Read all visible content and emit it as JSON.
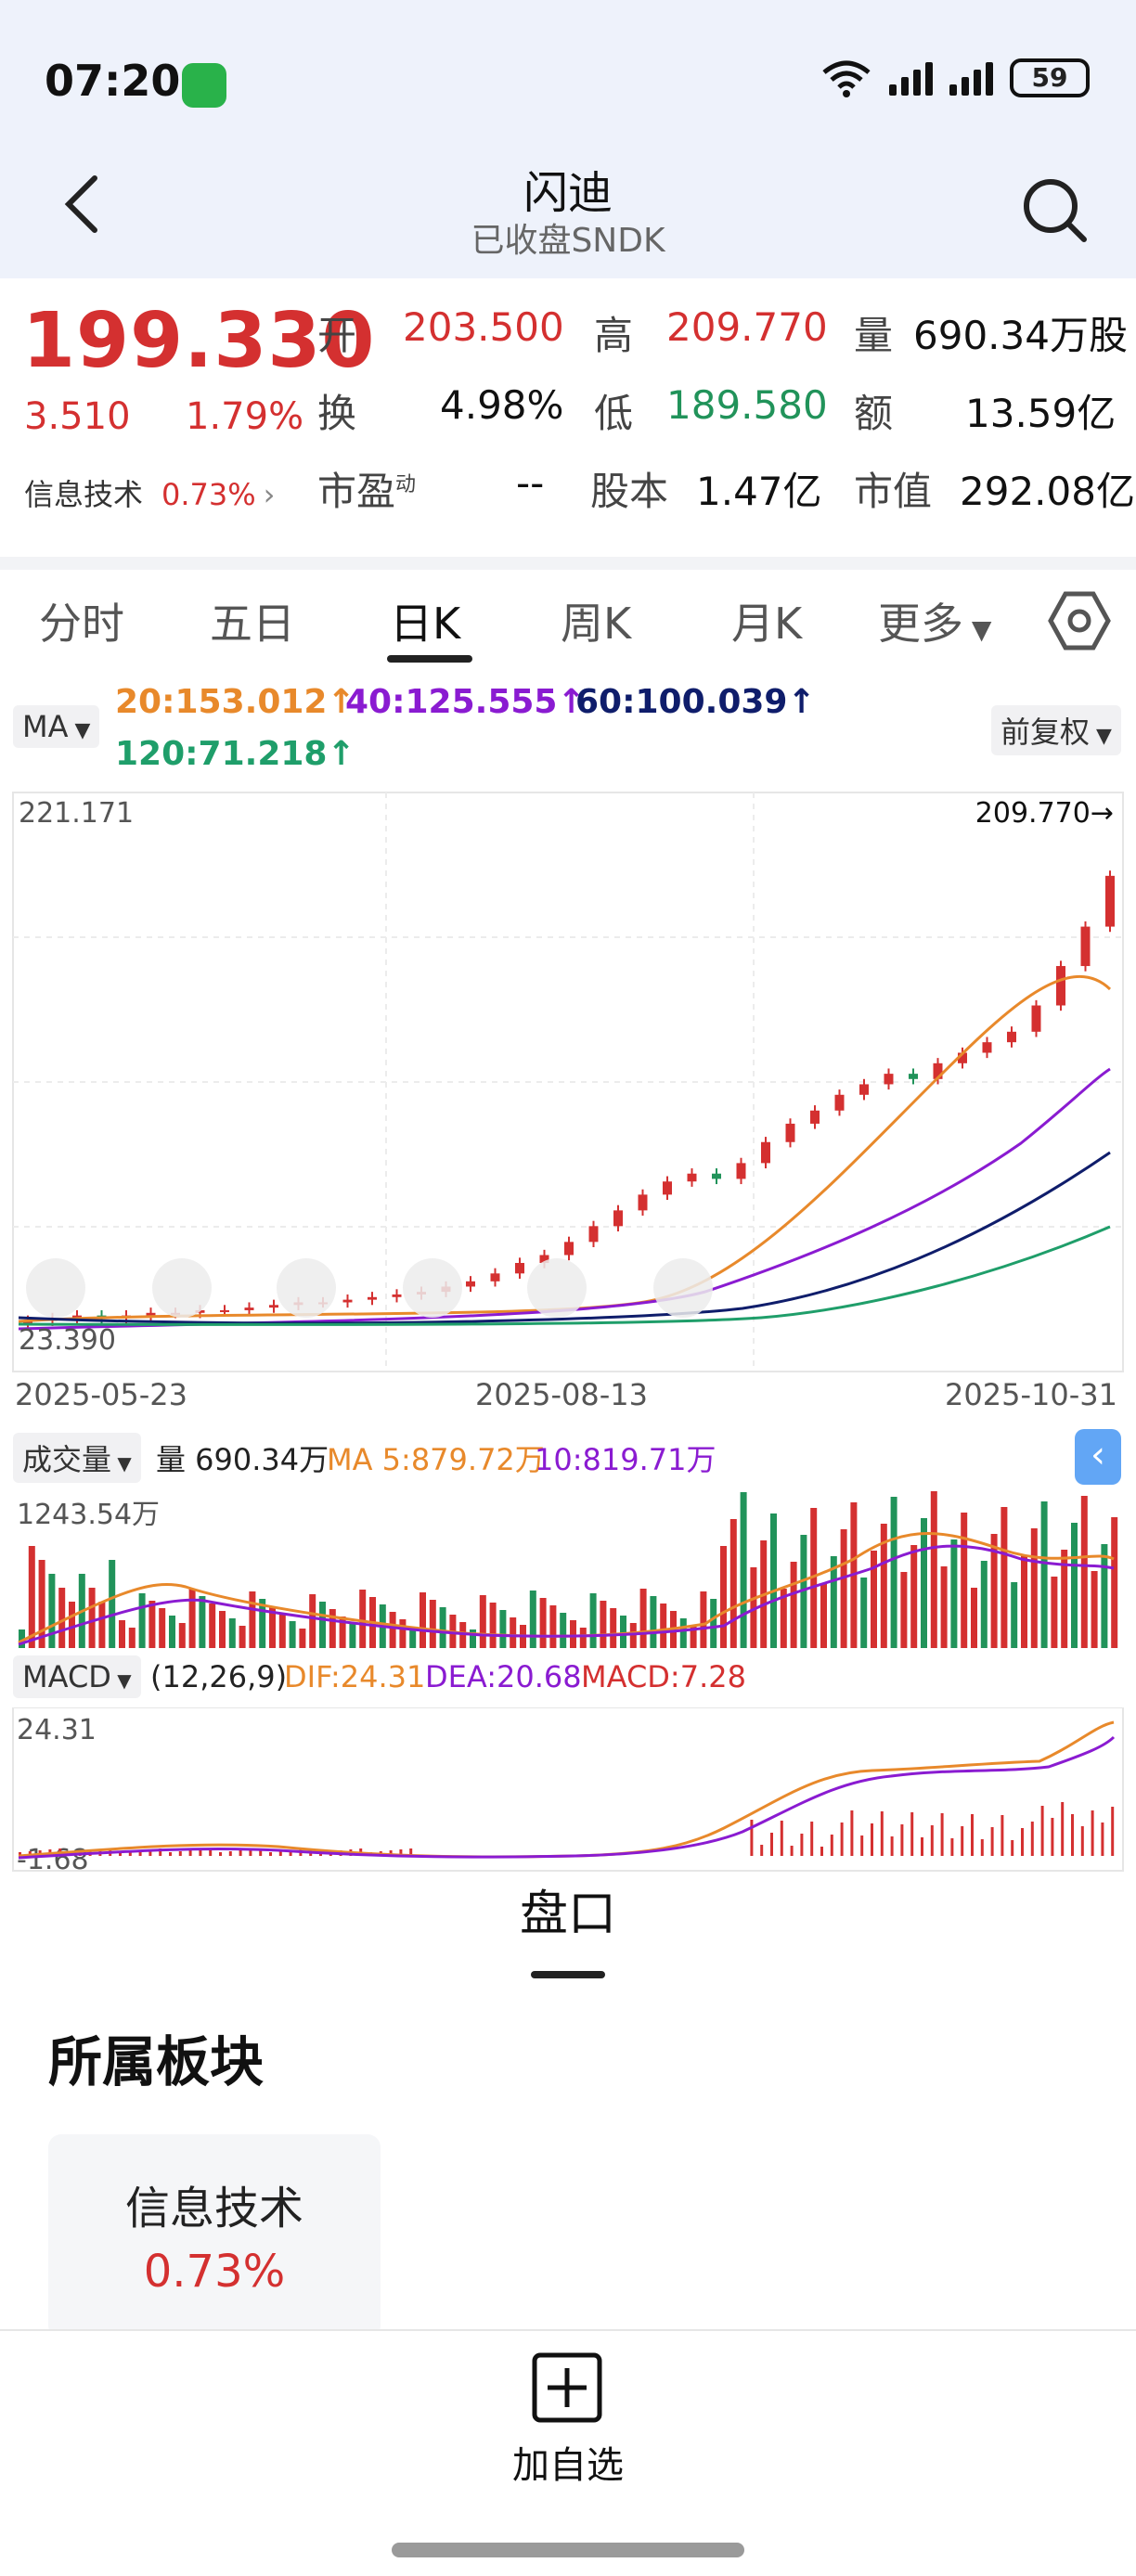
{
  "status_bar": {
    "time": "07:20",
    "battery": "59"
  },
  "header": {
    "title": "闪迪",
    "subtitle": "已收盘SNDK"
  },
  "quote": {
    "price": "199.330",
    "change": "3.510",
    "change_pct": "1.79%",
    "sector_name": "信息技术",
    "sector_pct": "0.73%",
    "open_label": "开",
    "open": "203.500",
    "high_label": "高",
    "high": "209.770",
    "volume_label": "量",
    "volume": "690.34万股",
    "turnover_label": "换",
    "turnover": "4.98%",
    "low_label": "低",
    "low": "189.580",
    "amount_label": "额",
    "amount": "13.59亿",
    "pe_label": "市盈",
    "pe_sup": "动",
    "pe": "--",
    "shares_label": "股本",
    "shares": "1.47亿",
    "mcap_label": "市值",
    "mcap": "292.08亿"
  },
  "tabs": [
    "分时",
    "五日",
    "日K",
    "周K",
    "月K",
    "更多"
  ],
  "active_tab": "日K",
  "ma_row": {
    "ma_chip": "MA",
    "ma20": "20:153.012↑",
    "ma40": "40:125.555↑",
    "ma60": "60:100.039↑",
    "ma120": "120:71.218↑",
    "adjust_chip": "前复权"
  },
  "colors": {
    "up": "#d43030",
    "down": "#21935a",
    "ma20": "#e8892b",
    "ma40": "#8a1bd1",
    "ma60": "#0f1d6b",
    "ma120": "#1f9e6a"
  },
  "chart_labels": {
    "price_max": "221.171",
    "high_marker": "209.770→",
    "price_min": "23.390",
    "date_start": "2025-05-23",
    "date_mid": "2025-08-13",
    "date_end": "2025-10-31"
  },
  "volume_row": {
    "chip": "成交量",
    "vol": "量 690.34万",
    "ma5": "MA 5:879.72万",
    "ma10": "10:819.71万",
    "max": "1243.54万"
  },
  "macd_row": {
    "chip": "MACD",
    "params": "(12,26,9)",
    "dif": "DIF:24.31",
    "dea": "DEA:20.68",
    "macd": "MACD:7.28",
    "max": "24.31",
    "min": "-1.68"
  },
  "panel": {
    "tab": "盘口",
    "section_title": "所属板块",
    "card_name": "信息技术",
    "card_pct": "0.73%"
  },
  "bottom": {
    "add_label": "加自选"
  },
  "chart_data": {
    "type": "candlestick",
    "x_range": [
      "2025-05-23",
      "2025-10-31"
    ],
    "ylim": [
      23.39,
      221.171
    ],
    "close_approx": [
      30,
      31,
      32,
      31,
      32,
      33,
      33,
      34,
      34,
      35,
      36,
      37,
      37,
      38,
      39,
      40,
      41,
      43,
      45,
      48,
      52,
      55,
      60,
      66,
      72,
      78,
      83,
      86,
      84,
      90,
      98,
      105,
      110,
      116,
      120,
      124,
      122,
      128,
      132,
      136,
      140,
      150,
      165,
      180,
      199.33
    ],
    "series": [
      {
        "name": "MA20",
        "last": 153.012
      },
      {
        "name": "MA40",
        "last": 125.555
      },
      {
        "name": "MA60",
        "last": 100.039
      },
      {
        "name": "MA120",
        "last": 71.218
      }
    ],
    "volume_last": 690.34,
    "macd": {
      "dif": 24.31,
      "dea": 20.68,
      "macd": 7.28
    }
  }
}
